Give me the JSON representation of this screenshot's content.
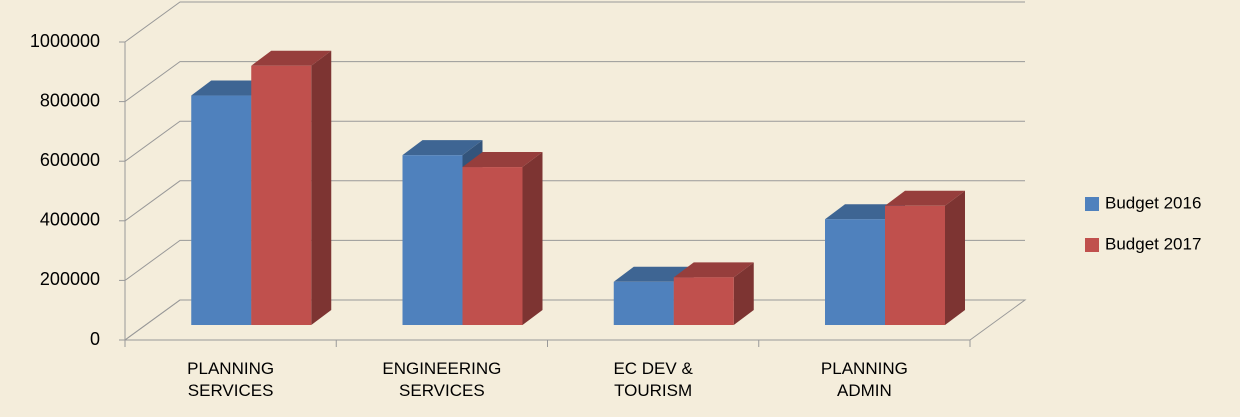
{
  "chart_data": {
    "type": "bar3d",
    "categories": [
      "PLANNING SERVICES",
      "ENGINEERING SERVICES",
      "EC DEV & TOURISM",
      "PLANNING ADMIN"
    ],
    "series": [
      {
        "name": "Budget 2016",
        "color": "#4f81bd",
        "values": [
          770000,
          570000,
          145000,
          355000
        ]
      },
      {
        "name": "Budget 2017",
        "color": "#c0504d",
        "values": [
          870000,
          530000,
          160000,
          400000
        ]
      }
    ],
    "ylim": [
      0,
      1000000
    ],
    "yticks": [
      0,
      200000,
      400000,
      600000,
      800000,
      1000000
    ],
    "grid": true,
    "legend": "right"
  }
}
